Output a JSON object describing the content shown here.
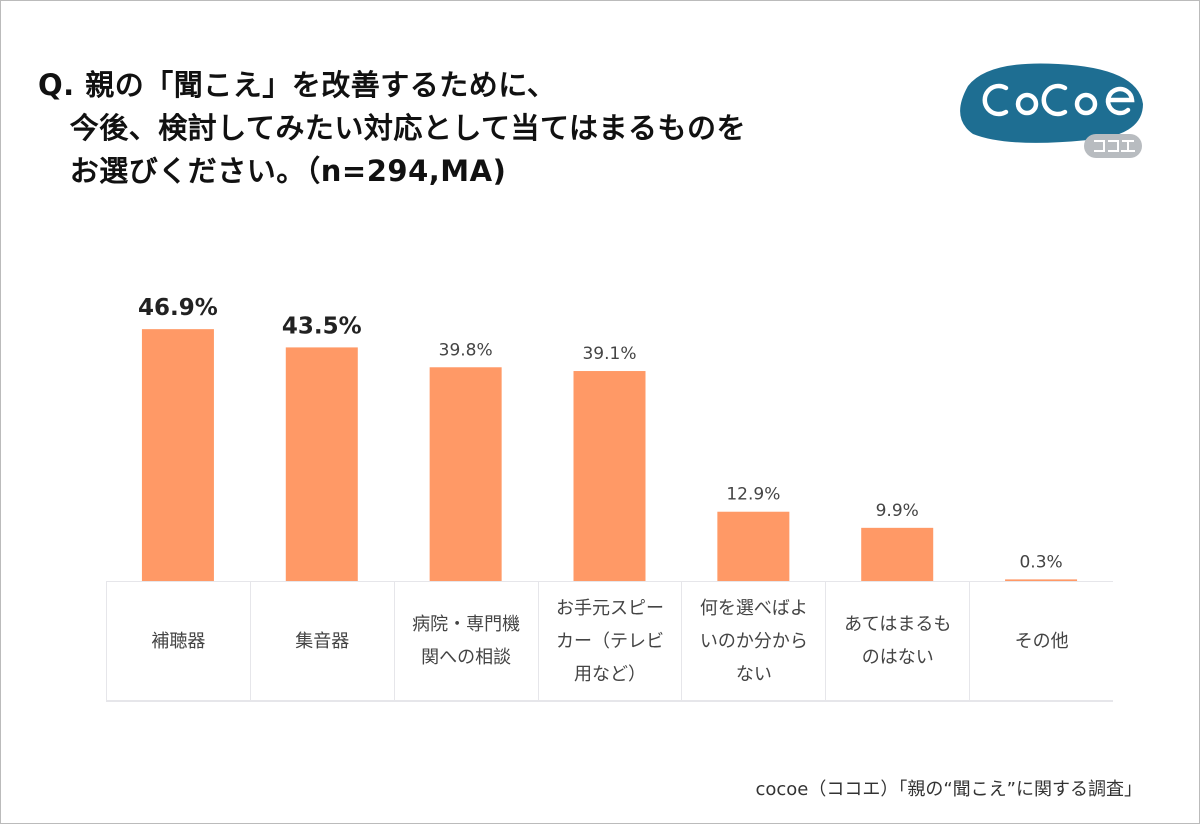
{
  "title": "Q. 親の「聞こえ」を改善するために、\n   今後、検討してみたい対応として当てはまるものを\n   お選びください。（n=294,MA)",
  "logo": {
    "text": "CoCoe",
    "sub": "ココエ",
    "color": "#1e6e92",
    "sub_color": "#b8bcc0"
  },
  "source": "cocoe（ココエ）「親の“聞こえ”に関する調査」",
  "chart_data": {
    "type": "bar",
    "title": "Q. 親の「聞こえ」を改善するために、今後、検討してみたい対応として当てはまるものをお選びください。（n=294,MA)",
    "categories": [
      "補聴器",
      "集音器",
      "病院・専門機\n関への相談",
      "お手元スピー\nカー（テレビ\n用など）",
      "何を選べばよ\nいのか分から\nない",
      "あてはまるも\nのはない",
      "その他"
    ],
    "values": [
      46.9,
      43.5,
      39.8,
      39.1,
      12.9,
      9.9,
      0.3
    ],
    "labels": [
      "46.9%",
      "43.5%",
      "39.8%",
      "39.1%",
      "12.9%",
      "9.9%",
      "0.3%"
    ],
    "unit": "%",
    "bar_color": "#ff9966",
    "highlight_top": 2,
    "grid": false,
    "legend": "none"
  }
}
